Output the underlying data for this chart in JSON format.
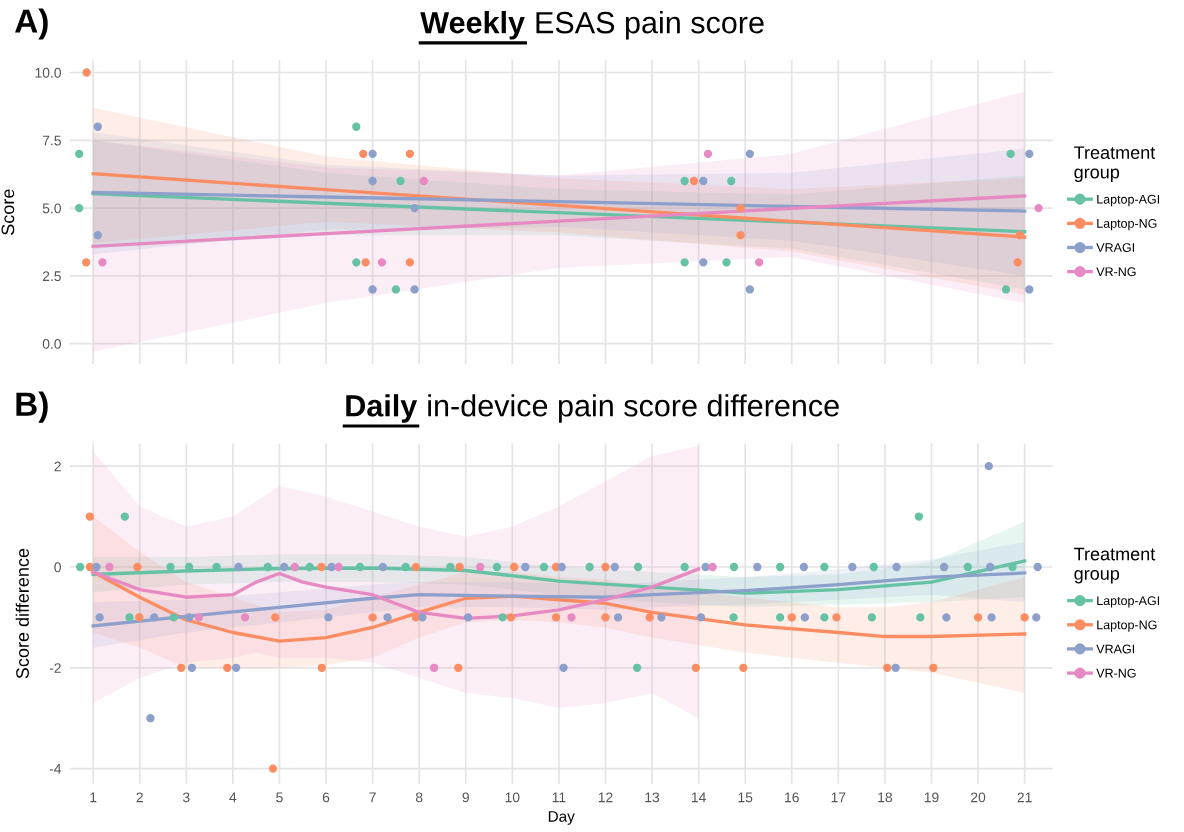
{
  "chart_data": [
    {
      "type": "scatter",
      "title": "Weekly ESAS pain score",
      "ylabel": "Score",
      "legend_title": "Treatment group",
      "legend": "right",
      "grid": true,
      "tick_labels": "y",
      "annotations": [
        "A)"
      ],
      "xlim": [
        0.5,
        21.6
      ],
      "xticks": [
        1,
        2,
        3,
        4,
        5,
        6,
        7,
        8,
        9,
        10,
        11,
        12,
        13,
        14,
        15,
        16,
        17,
        18,
        19,
        20,
        21
      ],
      "ylim": [
        -0.75,
        10.45
      ],
      "yticks": [
        {
          "value": 0,
          "label": "0.0"
        },
        {
          "value": 2.5,
          "label": "2.5"
        },
        {
          "value": 5,
          "label": "5.0"
        },
        {
          "value": 7.5,
          "label": "7.5"
        },
        {
          "value": 10,
          "label": "10.0"
        }
      ],
      "series": [
        {
          "name": "Laptop-AGI",
          "color": "#66c2a5",
          "x": [
            0.7,
            0.7,
            6.65,
            7.6,
            6.65,
            7.5,
            13.7,
            14.7,
            13.7,
            14.6,
            20.7,
            20.6
          ],
          "values": [
            7,
            5,
            8,
            6,
            3,
            2,
            6,
            6,
            3,
            3,
            7,
            2
          ]
        },
        {
          "name": "Laptop-NG",
          "color": "#fc8d62",
          "x": [
            0.86,
            0.85,
            6.8,
            7.8,
            6.85,
            7.8,
            13.9,
            14.9,
            14.9,
            20.9,
            20.85
          ],
          "values": [
            10,
            3,
            7,
            7,
            3,
            3,
            6,
            5,
            4,
            4,
            3
          ]
        },
        {
          "name": "VRAGI",
          "color": "#8da0cb",
          "x": [
            1.1,
            1.1,
            7.0,
            7.0,
            7.9,
            7.0,
            7.9,
            15.1,
            14.1,
            14.1,
            15.1,
            21.1,
            21.1
          ],
          "values": [
            8,
            4,
            7,
            6,
            5,
            2,
            2,
            7,
            6,
            3,
            2,
            7,
            2
          ]
        },
        {
          "name": "VR-NG",
          "color": "#e78ac3",
          "x": [
            1.2,
            8.1,
            7.2,
            14.2,
            15.3,
            21.3
          ],
          "values": [
            3,
            6,
            3,
            7,
            3,
            5
          ]
        },
        {
          "type": "line",
          "color": "#66c2a5",
          "x": [
            1,
            6,
            11,
            16,
            21
          ],
          "values": [
            5.53,
            5.18,
            4.83,
            4.48,
            4.13
          ],
          "lower": [
            3.5,
            4.0,
            4.0,
            3.5,
            2.0
          ],
          "upper": [
            7.5,
            6.3,
            5.7,
            5.5,
            6.2
          ]
        },
        {
          "type": "line",
          "color": "#fc8d62",
          "x": [
            1,
            6,
            11,
            16,
            21
          ],
          "values": [
            6.27,
            5.68,
            5.1,
            4.51,
            3.93
          ],
          "lower": [
            3.7,
            4.5,
            4.1,
            3.4,
            1.8
          ],
          "upper": [
            8.7,
            6.9,
            6.1,
            5.7,
            6.1
          ]
        },
        {
          "type": "line",
          "color": "#8da0cb",
          "x": [
            1,
            6,
            11,
            16,
            21
          ],
          "values": [
            5.58,
            5.41,
            5.24,
            5.06,
            4.89
          ],
          "lower": [
            3.3,
            4.2,
            4.3,
            3.8,
            2.5
          ],
          "upper": [
            7.8,
            6.6,
            6.2,
            6.3,
            7.2
          ]
        },
        {
          "type": "line",
          "color": "#e78ac3",
          "x": [
            1,
            6,
            11,
            16,
            21
          ],
          "values": [
            3.59,
            4.06,
            4.52,
            4.99,
            5.45
          ],
          "lower": [
            -0.3,
            1.5,
            2.8,
            3.2,
            1.5
          ],
          "upper": [
            7.5,
            6.5,
            6.2,
            7.0,
            9.3
          ]
        }
      ]
    },
    {
      "type": "scatter",
      "title": "Daily in-device pain score difference",
      "xlabel": "Day",
      "ylabel": "Score difference",
      "legend_title": "Treatment group",
      "legend": "right",
      "grid": true,
      "annotations": [
        "B)"
      ],
      "xlim": [
        0.5,
        21.6
      ],
      "xticks": [
        1,
        2,
        3,
        4,
        5,
        6,
        7,
        8,
        9,
        10,
        11,
        12,
        13,
        14,
        15,
        16,
        17,
        18,
        19,
        20,
        21
      ],
      "ylim": [
        -4.3,
        2.45
      ],
      "yticks": [
        -4,
        -2,
        0,
        2
      ],
      "series": [
        {
          "name": "Laptop-AGI",
          "color": "#66c2a5",
          "x": [
            0.72,
            2.66,
            3.06,
            3.65,
            4.75,
            5.65,
            6.73,
            7.71,
            8.67,
            9.67,
            10.68,
            11.66,
            12.7,
            13.7,
            14.76,
            15.75,
            16.7,
            17.76,
            19.78,
            20.74,
            1.78,
            2.73,
            9.79,
            14.75,
            15.75,
            16.7,
            17.72,
            18.76,
            12.68,
            1.68,
            18.73
          ],
          "values": [
            0,
            0,
            0,
            0,
            0,
            0,
            0,
            0,
            0,
            0,
            0,
            0,
            0,
            0,
            0,
            0,
            0,
            0,
            0,
            0,
            -1,
            -1,
            -1,
            -1,
            -1,
            -1,
            -1,
            -1,
            -2,
            1,
            1
          ]
        },
        {
          "name": "Laptop-NG",
          "color": "#fc8d62",
          "x": [
            0.93,
            1.95,
            5.9,
            7.93,
            8.87,
            10.04,
            10.94,
            12.0,
            1.99,
            4.91,
            7.0,
            7.93,
            9.97,
            10.94,
            12.0,
            12.95,
            16.0,
            16.96,
            20.0,
            21.0,
            2.89,
            3.88,
            5.91,
            8.84,
            13.94,
            14.96,
            18.05,
            19.04,
            0.93,
            4.86
          ],
          "values": [
            0,
            0,
            0,
            0,
            0,
            0,
            0,
            0,
            -1,
            -1,
            -1,
            -1,
            -1,
            -1,
            -1,
            -1,
            -1,
            -1,
            -1,
            -1,
            -2,
            -2,
            -2,
            -2,
            -2,
            -2,
            -2,
            -2,
            1,
            -4
          ]
        },
        {
          "name": "VRAGI",
          "color": "#8da0cb",
          "x": [
            1.07,
            4.12,
            5.1,
            6.12,
            7.22,
            10.28,
            11.06,
            12.2,
            14.15,
            15.26,
            16.26,
            17.3,
            18.25,
            19.27,
            20.26,
            21.28,
            1.14,
            2.31,
            3.06,
            6.05,
            7.32,
            8.07,
            9.05,
            12.27,
            13.2,
            14.05,
            16.28,
            19.32,
            20.29,
            21.25,
            3.12,
            4.07,
            11.1,
            18.23,
            2.23,
            20.23
          ],
          "values": [
            0,
            0,
            0,
            0,
            0,
            0,
            0,
            0,
            0,
            0,
            0,
            0,
            0,
            0,
            0,
            0,
            -1,
            -1,
            -1,
            -1,
            -1,
            -1,
            -1,
            -1,
            -1,
            -1,
            -1,
            -1,
            -1,
            -1,
            -2,
            -2,
            -2,
            -2,
            -3,
            2
          ]
        },
        {
          "name": "VR-NG",
          "color": "#e78ac3",
          "x": [
            1.35,
            5.33,
            6.27,
            9.31,
            14.3,
            3.27,
            4.26,
            11.27,
            8.32
          ],
          "values": [
            0,
            0,
            0,
            0,
            0,
            -1,
            -1,
            -1,
            -2
          ]
        },
        {
          "type": "line",
          "color": "#66c2a5",
          "x": [
            1,
            3,
            5,
            7,
            9,
            11,
            13,
            15,
            17,
            19,
            21
          ],
          "values": [
            -0.15,
            -0.08,
            -0.03,
            -0.02,
            -0.07,
            -0.28,
            -0.4,
            -0.52,
            -0.45,
            -0.3,
            0.12
          ],
          "lower": [
            -0.5,
            -0.35,
            -0.3,
            -0.3,
            -0.35,
            -0.55,
            -0.7,
            -0.8,
            -0.75,
            -0.7,
            -0.6
          ],
          "upper": [
            0.2,
            0.2,
            0.25,
            0.25,
            0.2,
            0.0,
            -0.1,
            -0.2,
            -0.15,
            0.1,
            0.9
          ]
        },
        {
          "type": "line",
          "color": "#fc8d62",
          "x": [
            1,
            2,
            3,
            4,
            5,
            6,
            7,
            8,
            9,
            10,
            11,
            12,
            13,
            15,
            17,
            18,
            19,
            21
          ],
          "values": [
            -0.1,
            -0.6,
            -1.05,
            -1.3,
            -1.47,
            -1.4,
            -1.2,
            -0.9,
            -0.62,
            -0.58,
            -0.65,
            -0.72,
            -0.9,
            -1.15,
            -1.3,
            -1.38,
            -1.38,
            -1.33
          ],
          "lower": [
            -1.3,
            -1.6,
            -2.0,
            -2.0,
            -2.0,
            -1.95,
            -1.8,
            -1.4,
            -1.1,
            -1.05,
            -1.1,
            -1.2,
            -1.4,
            -1.7,
            -1.9,
            -2.0,
            -2.1,
            -2.5
          ],
          "upper": [
            1.0,
            0.3,
            -0.3,
            -0.6,
            -0.9,
            -0.85,
            -0.6,
            -0.35,
            -0.1,
            -0.1,
            -0.2,
            -0.25,
            -0.4,
            -0.6,
            -0.8,
            -0.8,
            -0.7,
            -0.2
          ]
        },
        {
          "type": "line",
          "color": "#8da0cb",
          "x": [
            1,
            3,
            5,
            7,
            8,
            10,
            12,
            13,
            15,
            17,
            19,
            21
          ],
          "values": [
            -1.17,
            -0.98,
            -0.8,
            -0.62,
            -0.55,
            -0.58,
            -0.6,
            -0.55,
            -0.47,
            -0.35,
            -0.2,
            -0.12
          ],
          "lower": [
            -1.6,
            -1.3,
            -1.1,
            -0.9,
            -0.8,
            -0.8,
            -0.85,
            -0.8,
            -0.75,
            -0.65,
            -0.55,
            -0.7
          ],
          "upper": [
            -0.7,
            -0.65,
            -0.5,
            -0.35,
            -0.3,
            -0.3,
            -0.35,
            -0.3,
            -0.2,
            -0.05,
            0.15,
            0.5
          ]
        },
        {
          "type": "line",
          "color": "#e78ac3",
          "x": [
            1,
            2,
            3,
            4,
            4.5,
            5,
            5.5,
            6,
            7,
            8,
            9,
            10,
            11,
            12,
            13,
            14
          ],
          "values": [
            -0.1,
            -0.45,
            -0.6,
            -0.55,
            -0.3,
            -0.13,
            -0.3,
            -0.4,
            -0.55,
            -0.9,
            -1.02,
            -0.97,
            -0.85,
            -0.65,
            -0.4,
            -0.04
          ],
          "lower": [
            -2.7,
            -2.2,
            -1.9,
            -1.8,
            -1.7,
            -1.8,
            -1.8,
            -1.8,
            -1.9,
            -2.2,
            -2.5,
            -2.6,
            -2.8,
            -2.7,
            -2.5,
            -3.0
          ],
          "upper": [
            2.3,
            1.2,
            0.8,
            1.0,
            1.3,
            1.6,
            1.5,
            1.4,
            1.1,
            0.8,
            0.6,
            0.8,
            1.2,
            1.7,
            2.2,
            2.4
          ]
        }
      ]
    }
  ]
}
